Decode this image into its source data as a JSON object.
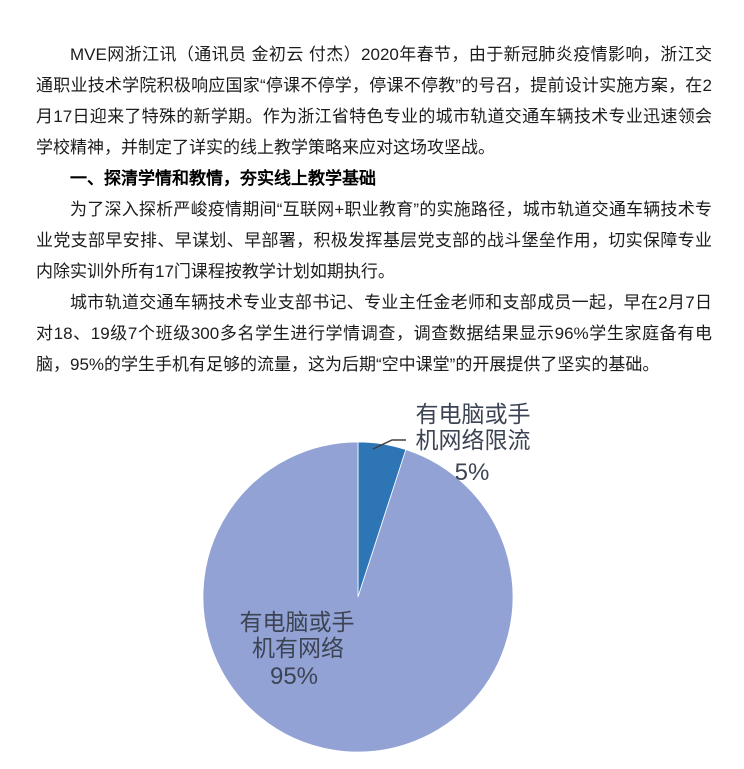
{
  "document": {
    "paragraph_1": "MVE网浙江讯（通讯员 金初云 付杰）2020年春节，由于新冠肺炎疫情影响，浙江交通职业技术学院积极响应国家“停课不停学，停课不停教”的号召，提前设计实施方案，在2月17日迎来了特殊的新学期。作为浙江省特色专业的城市轨道交通车辆技术专业迅速领会学校精神，并制定了详实的线上教学策略来应对这场攻坚战。",
    "section_heading": "一、探清学情和教情，夯实线上教学基础",
    "paragraph_2": "为了深入探析严峻疫情期间“互联网+职业教育”的实施路径，城市轨道交通车辆技术专业党支部早安排、早谋划、早部署，积极发挥基层党支部的战斗堡垒作用，切实保障专业内除实训外所有17门课程按教学计划如期执行。",
    "paragraph_3": "城市轨道交通车辆技术专业支部书记、专业主任金老师和支部成员一起，早在2月7日对18、19级7个班级300多名学生进行学情调查，调查数据结果显示96%学生家庭备有电脑，95%的学生手机有足够的流量，这为后期“空中课堂”的开展提供了坚实的基础。"
  },
  "chart_data": {
    "type": "pie",
    "title": "",
    "legend": "none",
    "start_angle_deg": 0,
    "direction": "clockwise",
    "label_color": "#3c4454",
    "leader_line_color": "#404040",
    "slice_border_color": "#ffffff",
    "slices": [
      {
        "label": "有电脑或手机网络限流",
        "label_lines": [
          "有电脑或手",
          "机网络限流"
        ],
        "value": 5,
        "pct_label": "5%",
        "color": "#2e75b6",
        "label_placement": "outside"
      },
      {
        "label": "有电脑或手机有网络",
        "label_lines": [
          "有电脑或手",
          "机有网络"
        ],
        "value": 95,
        "pct_label": "95%",
        "color": "#92a2d5",
        "label_placement": "inside"
      }
    ]
  }
}
